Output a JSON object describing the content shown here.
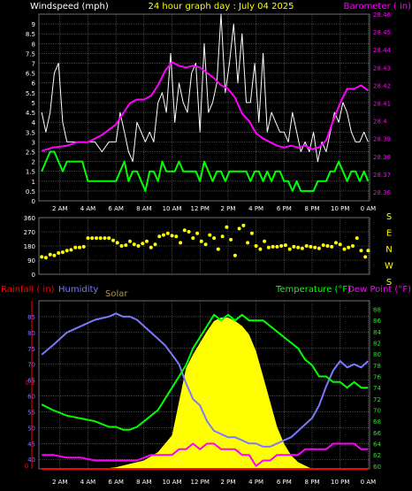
{
  "header": {
    "left_title": "Windspeed (mph)",
    "center_title": "24 hour graph day : July 04 2025",
    "right_title": "Barometer ( in)"
  },
  "time_labels": [
    "2 AM",
    "4 AM",
    "6 AM",
    "8 AM",
    "10 AM",
    "12 PM",
    "2 PM",
    "4 PM",
    "6 PM",
    "8 PM",
    "10 PM",
    "0 AM"
  ],
  "colors": {
    "windspeed": "#ffffff",
    "gust": "#ffffff",
    "avg_wind": "#00ff00",
    "barometer": "#ff00ff",
    "direction": "#ffff00",
    "rainfall": "#ff0000",
    "humidity": "#7a7aff",
    "solar": "#ffff00",
    "temperature": "#00ff00",
    "dewpoint": "#ff00ff",
    "grid": "#6e6e6e",
    "axis_text": "#ffffff"
  },
  "chart_data": [
    {
      "type": "line",
      "title": "24 hour graph day : July 04 2025",
      "ylabel": "Windspeed (mph)",
      "ylim": [
        0,
        9.5
      ],
      "yticks": [
        "9",
        "8.5",
        "8",
        "7.5",
        "7",
        "6.5",
        "6",
        "5.5",
        "5",
        "4.5",
        "4",
        "3.5",
        "3",
        "2.5",
        "2",
        "1.5",
        "1",
        "0.5",
        "0"
      ],
      "y2label": "Barometer ( in)",
      "y2lim": [
        28.355,
        28.46
      ],
      "y2ticks": [
        "28.46",
        "28.45",
        "28.44",
        "28.43",
        "28.42",
        "28.41",
        "28.4",
        "28.39",
        "28.38",
        "28.37",
        "28.36"
      ],
      "xlim": [
        0.5,
        24.1
      ],
      "grid": true,
      "series": [
        {
          "name": "Windspeed (mph)",
          "key": "gust",
          "x": [
            0.7,
            1.0,
            1.3,
            1.6,
            1.9,
            2.2,
            2.5,
            2.8,
            3.2,
            3.6,
            4.0,
            4.5,
            5.0,
            5.5,
            6.0,
            6.3,
            6.6,
            6.9,
            7.2,
            7.5,
            7.8,
            8.1,
            8.4,
            8.7,
            9.0,
            9.3,
            9.6,
            9.9,
            10.2,
            10.5,
            10.8,
            11.1,
            11.4,
            11.7,
            12.0,
            12.3,
            12.6,
            12.9,
            13.2,
            13.5,
            13.8,
            14.1,
            14.4,
            14.7,
            15.0,
            15.3,
            15.6,
            15.9,
            16.2,
            16.5,
            16.8,
            17.1,
            17.4,
            17.7,
            18.0,
            18.3,
            18.6,
            18.9,
            19.2,
            19.5,
            19.8,
            20.1,
            20.4,
            20.7,
            21.0,
            21.3,
            21.6,
            21.9,
            22.2,
            22.5,
            22.8,
            23.1,
            23.4,
            23.7,
            24.0
          ],
          "values": [
            4.5,
            3.5,
            4.5,
            6.5,
            7.0,
            4.0,
            3.0,
            3.0,
            3.0,
            3.0,
            3.0,
            3.0,
            2.5,
            3.0,
            3.0,
            4.5,
            3.5,
            2.5,
            2.0,
            4.0,
            3.5,
            3.0,
            3.5,
            3.0,
            5.0,
            5.5,
            4.5,
            7.5,
            4.0,
            6.0,
            5.0,
            4.5,
            6.5,
            7.0,
            3.5,
            8.0,
            4.5,
            5.0,
            6.0,
            9.5,
            5.5,
            7.0,
            9.0,
            6.0,
            8.5,
            5.0,
            5.0,
            7.0,
            4.0,
            7.5,
            3.5,
            4.5,
            4.0,
            3.5,
            3.5,
            3.0,
            4.5,
            3.5,
            2.5,
            3.0,
            2.5,
            3.5,
            2.0,
            3.0,
            2.5,
            3.5,
            4.5,
            4.0,
            5.0,
            4.5,
            3.5,
            3.0,
            3.0,
            3.5,
            3.0
          ]
        },
        {
          "name": "Average wind",
          "key": "avg_wind",
          "x": [
            0.7,
            1.0,
            1.3,
            1.6,
            1.9,
            2.2,
            2.5,
            2.8,
            3.2,
            3.6,
            4.0,
            4.5,
            5.0,
            5.5,
            6.0,
            6.3,
            6.6,
            6.9,
            7.2,
            7.5,
            7.8,
            8.1,
            8.4,
            8.7,
            9.0,
            9.3,
            9.6,
            9.9,
            10.2,
            10.5,
            10.8,
            11.1,
            11.4,
            11.7,
            12.0,
            12.3,
            12.6,
            12.9,
            13.2,
            13.5,
            13.8,
            14.1,
            14.4,
            14.7,
            15.0,
            15.3,
            15.6,
            15.9,
            16.2,
            16.5,
            16.8,
            17.1,
            17.4,
            17.7,
            18.0,
            18.3,
            18.6,
            18.9,
            19.2,
            19.5,
            19.8,
            20.1,
            20.4,
            20.7,
            21.0,
            21.3,
            21.6,
            21.9,
            22.2,
            22.5,
            22.8,
            23.1,
            23.4,
            23.7,
            24.0
          ],
          "values": [
            1.5,
            2.0,
            2.5,
            2.5,
            2.0,
            1.5,
            2.0,
            2.0,
            2.0,
            2.0,
            1.0,
            1.0,
            1.0,
            1.0,
            1.0,
            1.5,
            2.0,
            1.0,
            1.5,
            1.5,
            1.0,
            0.5,
            1.5,
            1.5,
            1.0,
            2.0,
            1.5,
            1.5,
            1.5,
            2.0,
            1.5,
            1.5,
            1.5,
            1.5,
            1.0,
            2.0,
            1.5,
            1.0,
            1.5,
            1.5,
            1.0,
            1.5,
            1.5,
            1.5,
            1.5,
            1.5,
            1.0,
            1.5,
            1.5,
            1.0,
            1.5,
            1.0,
            1.5,
            1.5,
            1.0,
            1.0,
            0.5,
            1.0,
            0.5,
            0.5,
            0.5,
            0.5,
            1.0,
            1.0,
            1.0,
            1.5,
            1.5,
            2.0,
            1.5,
            1.0,
            1.5,
            1.5,
            1.0,
            1.5,
            1.0
          ]
        },
        {
          "name": "Barometer ( in)",
          "key": "barometer",
          "x": [
            0.7,
            1.5,
            2.5,
            3.2,
            4.0,
            5.0,
            6.0,
            6.5,
            7.0,
            7.5,
            8.0,
            8.5,
            9.0,
            9.5,
            10.0,
            10.5,
            11.0,
            11.5,
            12.0,
            12.5,
            13.0,
            13.5,
            14.0,
            14.5,
            15.0,
            15.5,
            16.0,
            16.5,
            17.0,
            17.5,
            18.0,
            18.5,
            19.0,
            19.5,
            20.0,
            20.5,
            21.0,
            21.5,
            22.0,
            22.5,
            23.0,
            23.5,
            24.0
          ],
          "values": [
            28.383,
            28.385,
            28.386,
            28.388,
            28.388,
            28.392,
            28.398,
            28.404,
            28.41,
            28.412,
            28.412,
            28.414,
            28.42,
            28.428,
            28.433,
            28.431,
            28.43,
            28.431,
            28.43,
            28.427,
            28.424,
            28.42,
            28.418,
            28.413,
            28.404,
            28.4,
            28.393,
            28.39,
            28.388,
            28.386,
            28.385,
            28.386,
            28.385,
            28.386,
            28.384,
            28.385,
            28.389,
            28.4,
            28.41,
            28.418,
            28.418,
            28.42,
            28.417
          ]
        }
      ]
    },
    {
      "type": "scatter",
      "ylabel": "Wind direction",
      "ylim": [
        0,
        360
      ],
      "yticks": [
        "360",
        "270",
        "180",
        "90",
        "0"
      ],
      "compass_labels": [
        "S",
        "E",
        "N",
        "W",
        "S"
      ],
      "xlim": [
        0.5,
        24.1
      ],
      "grid": true,
      "series": [
        {
          "name": "Wind direction",
          "key": "direction",
          "x": [
            0.7,
            1.0,
            1.3,
            1.6,
            1.9,
            2.2,
            2.5,
            2.8,
            3.1,
            3.4,
            3.7,
            4.0,
            4.3,
            4.6,
            4.9,
            5.2,
            5.5,
            5.8,
            6.1,
            6.4,
            6.7,
            7.0,
            7.3,
            7.6,
            7.9,
            8.2,
            8.5,
            8.8,
            9.1,
            9.4,
            9.7,
            10.0,
            10.3,
            10.6,
            10.9,
            11.2,
            11.5,
            11.8,
            12.1,
            12.4,
            12.7,
            13.0,
            13.3,
            13.6,
            13.9,
            14.2,
            14.5,
            14.8,
            15.1,
            15.4,
            15.7,
            16.0,
            16.3,
            16.6,
            16.9,
            17.2,
            17.5,
            17.8,
            18.1,
            18.4,
            18.7,
            19.0,
            19.3,
            19.6,
            19.9,
            20.2,
            20.5,
            20.8,
            21.1,
            21.4,
            21.7,
            22.0,
            22.3,
            22.6,
            22.9,
            23.2,
            23.5,
            23.8,
            24.0
          ],
          "values": [
            110,
            105,
            125,
            120,
            135,
            140,
            150,
            155,
            170,
            170,
            175,
            230,
            230,
            230,
            230,
            230,
            230,
            215,
            200,
            180,
            185,
            210,
            190,
            180,
            195,
            210,
            170,
            190,
            240,
            250,
            260,
            245,
            240,
            200,
            280,
            270,
            230,
            260,
            210,
            190,
            250,
            230,
            160,
            240,
            300,
            220,
            120,
            290,
            310,
            200,
            260,
            180,
            160,
            210,
            170,
            175,
            175,
            180,
            185,
            160,
            175,
            170,
            165,
            180,
            175,
            170,
            165,
            185,
            180,
            175,
            200,
            190,
            160,
            170,
            180,
            230,
            150,
            110,
            150
          ]
        }
      ]
    },
    {
      "type": "line",
      "ylabel": "Humidity",
      "ylim": [
        37,
        90
      ],
      "yticks": [
        "85",
        "80",
        "75",
        "70",
        "65",
        "60",
        "55",
        "50",
        "45",
        "40"
      ],
      "y2label": "Temperature (°F)",
      "y2lim": [
        59.5,
        89.5
      ],
      "y2ticks": [
        "88",
        "86",
        "84",
        "82",
        "80",
        "78",
        "76",
        "74",
        "72",
        "70",
        "68",
        "66",
        "64",
        "62",
        "60"
      ],
      "rain_label": "Rainfall ( in)",
      "rain_ticks": [
        "0.1",
        "0"
      ],
      "solar_label": "Solar",
      "extra_legend": "Dew Point (°F)",
      "xlim": [
        0.5,
        24.1
      ],
      "grid": true,
      "series": [
        {
          "name": "Humidity",
          "key": "humidity",
          "x": [
            0.7,
            1.5,
            2.5,
            3.5,
            4.5,
            5.5,
            6.0,
            6.5,
            7.0,
            7.5,
            8.0,
            8.5,
            9.0,
            9.5,
            10.0,
            10.5,
            11.0,
            11.5,
            12.0,
            12.5,
            13.0,
            13.5,
            14.0,
            14.5,
            15.0,
            15.5,
            16.0,
            16.5,
            17.0,
            17.5,
            18.0,
            18.5,
            19.0,
            19.5,
            20.0,
            20.5,
            21.0,
            21.5,
            22.0,
            22.5,
            23.0,
            23.5,
            24.0
          ],
          "values": [
            73,
            76,
            80,
            82,
            84,
            85,
            86,
            85,
            85,
            84,
            82,
            80,
            78,
            76,
            73,
            70,
            64,
            59,
            57,
            52,
            49,
            48,
            47,
            47,
            46,
            45,
            45,
            44,
            44,
            45,
            46,
            47,
            49,
            51,
            53,
            57,
            63,
            68,
            71,
            69,
            70,
            69,
            71
          ]
        },
        {
          "name": "Temperature (°F)",
          "key": "temperature",
          "x": [
            0.7,
            1.5,
            2.5,
            3.5,
            4.5,
            5.5,
            6.0,
            6.5,
            7.0,
            7.5,
            8.0,
            8.5,
            9.0,
            9.5,
            10.0,
            10.5,
            11.0,
            11.5,
            12.0,
            12.5,
            13.0,
            13.5,
            14.0,
            14.5,
            15.0,
            15.5,
            16.0,
            16.5,
            17.0,
            17.5,
            18.0,
            18.5,
            19.0,
            19.5,
            20.0,
            20.5,
            21.0,
            21.5,
            22.0,
            22.5,
            23.0,
            23.5,
            24.0
          ],
          "values": [
            71,
            70,
            69,
            68.5,
            68,
            67,
            67,
            66.5,
            66.5,
            67,
            68,
            69,
            70,
            72,
            74,
            76,
            78,
            81,
            83,
            85,
            87,
            86,
            87,
            86,
            87,
            86,
            86,
            86,
            85,
            84,
            83,
            82,
            81,
            79,
            78,
            76,
            76,
            75,
            75,
            74,
            75,
            74,
            74
          ]
        },
        {
          "name": "Dew Point (°F)",
          "key": "dewpoint",
          "x": [
            0.7,
            1.5,
            2.5,
            3.5,
            4.5,
            5.5,
            6.0,
            6.5,
            7.0,
            7.5,
            8.0,
            8.5,
            9.0,
            9.5,
            10.0,
            10.5,
            11.0,
            11.5,
            12.0,
            12.5,
            13.0,
            13.5,
            14.0,
            14.5,
            15.0,
            15.5,
            16.0,
            16.5,
            17.0,
            17.5,
            18.0,
            18.5,
            19.0,
            19.5,
            20.0,
            20.5,
            21.0,
            21.5,
            22.0,
            22.5,
            23.0,
            23.5,
            24.0
          ],
          "values": [
            62,
            62,
            61.5,
            61.5,
            61,
            61,
            61,
            61,
            61,
            61,
            61.5,
            62,
            62,
            62,
            62,
            63,
            63,
            64,
            63,
            64,
            64,
            63,
            63,
            63,
            62,
            62,
            60,
            61,
            61,
            62,
            62,
            62,
            62,
            63,
            63,
            63,
            63,
            64,
            64,
            64,
            64,
            63,
            63
          ]
        },
        {
          "name": "Solar",
          "key": "solar",
          "x": [
            0.7,
            5.0,
            6.0,
            7.0,
            8.0,
            9.0,
            10.0,
            10.5,
            11.0,
            11.5,
            12.0,
            12.5,
            13.0,
            13.5,
            14.0,
            14.5,
            15.0,
            15.5,
            16.0,
            16.5,
            17.0,
            17.5,
            18.0,
            18.5,
            19.0,
            19.5,
            20.0,
            24.0
          ],
          "values": [
            0,
            0,
            1,
            3,
            5,
            10,
            20,
            40,
            60,
            68,
            75,
            82,
            88,
            90,
            90,
            88,
            85,
            80,
            70,
            55,
            40,
            25,
            15,
            8,
            4,
            2,
            0,
            0
          ],
          "ylim": [
            0,
            100
          ]
        },
        {
          "name": "Rainfall ( in)",
          "key": "rainfall",
          "x": [
            0.7,
            24.0
          ],
          "values": [
            0,
            0
          ],
          "ylim": [
            0,
            0.2
          ]
        }
      ]
    }
  ]
}
